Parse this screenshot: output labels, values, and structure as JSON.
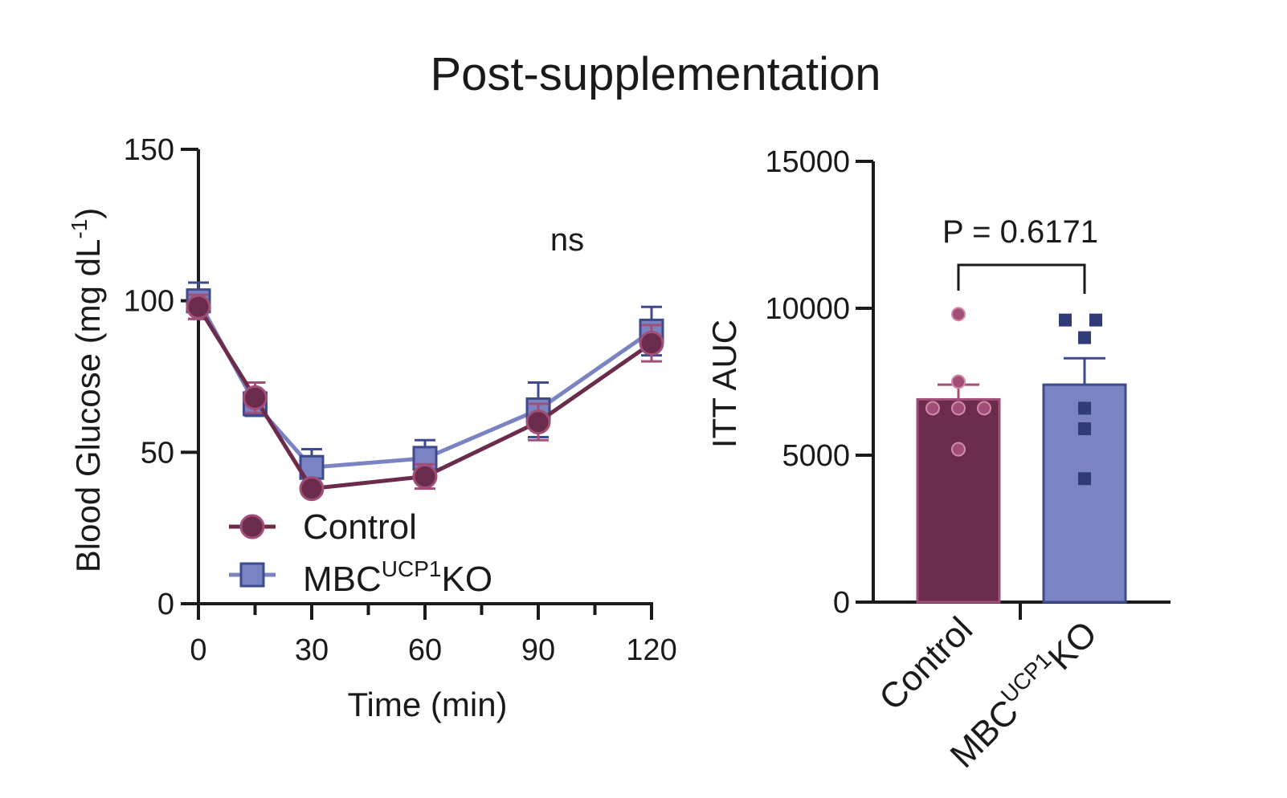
{
  "figure": {
    "title": "Post-supplementation"
  },
  "colors": {
    "control": "#6b2c4c",
    "control_marker_edge": "#a14f78",
    "ko": "#7a84c2",
    "ko_marker_edge": "#3d4a8c",
    "ko_point": "#2f3c78",
    "control_point": "#a24f78",
    "axis": "#1a1a1a"
  },
  "chart_data": [
    {
      "type": "line",
      "xlabel": "Time (min)",
      "ylabel": "Blood Glucose (mg  dL",
      "ylabel_superscript": "-1",
      "ylabel_suffix": ")",
      "xlim": [
        0,
        120
      ],
      "ylim": [
        0,
        150
      ],
      "xticks": [
        "0",
        "30",
        "60",
        "90",
        "120"
      ],
      "yticks": [
        "0",
        "50",
        "100",
        "150"
      ],
      "annotation": "ns",
      "legend_position": "bottom-left",
      "series": [
        {
          "name": "Control",
          "marker": "circle",
          "x": [
            0,
            15,
            30,
            60,
            90,
            120
          ],
          "y": [
            98,
            68,
            38,
            42,
            60,
            86
          ],
          "err": [
            4,
            5,
            2,
            4,
            6,
            6
          ]
        },
        {
          "name": "MBC",
          "name_superscript": "UCP1",
          "name_suffix": "KO",
          "marker": "square",
          "x": [
            0,
            15,
            30,
            60,
            90,
            120
          ],
          "y": [
            100,
            66,
            45,
            48,
            64,
            90
          ],
          "err": [
            6,
            4,
            6,
            6,
            9,
            8
          ]
        }
      ]
    },
    {
      "type": "bar",
      "ylabel": "ITT AUC",
      "ylim": [
        0,
        15000
      ],
      "yticks": [
        "0",
        "5000",
        "10000",
        "15000"
      ],
      "annotation": "P = 0.6171",
      "categories": [
        {
          "label": "Control",
          "superscript": "",
          "suffix": ""
        },
        {
          "label": "MBC",
          "superscript": "UCP1",
          "suffix": "KO"
        }
      ],
      "values": [
        6900,
        7400
      ],
      "sem": [
        500,
        900
      ],
      "points": [
        [
          9800,
          7500,
          6600,
          6600,
          6600,
          5200
        ],
        [
          9600,
          9600,
          9000,
          6600,
          5900,
          4200
        ]
      ]
    }
  ]
}
